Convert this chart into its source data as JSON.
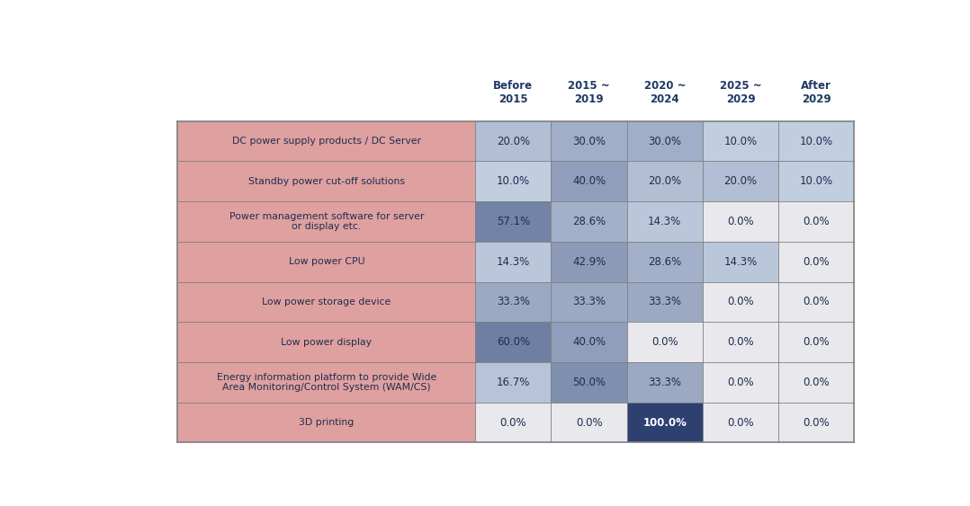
{
  "rows": [
    {
      "label": "DC power supply products / DC Server",
      "values": [
        20.0,
        30.0,
        30.0,
        10.0,
        10.0
      ]
    },
    {
      "label": "Standby power cut-off solutions",
      "values": [
        10.0,
        40.0,
        20.0,
        20.0,
        10.0
      ]
    },
    {
      "label": "Power management software for server\nor display etc.",
      "values": [
        57.1,
        28.6,
        14.3,
        0.0,
        0.0
      ]
    },
    {
      "label": "Low power CPU",
      "values": [
        14.3,
        42.9,
        28.6,
        14.3,
        0.0
      ]
    },
    {
      "label": "Low power storage device",
      "values": [
        33.3,
        33.3,
        33.3,
        0.0,
        0.0
      ]
    },
    {
      "label": "Low power display",
      "values": [
        60.0,
        40.0,
        0.0,
        0.0,
        0.0
      ]
    },
    {
      "label": "Energy information platform to provide Wide\nArea Monitoring/Control System (WAM/CS)",
      "values": [
        16.7,
        50.0,
        33.3,
        0.0,
        0.0
      ]
    },
    {
      "label": "3D printing",
      "values": [
        0.0,
        0.0,
        100.0,
        0.0,
        0.0
      ]
    }
  ],
  "col_headers": [
    "Before\n2015",
    "2015 ~\n2019",
    "2020 ~\n2024",
    "2025 ~\n2029",
    "After\n2029"
  ],
  "row_bg_color": "#dfa0a0",
  "zero_bg_color": "#e8e8ed",
  "col_header_color": "#1f3864",
  "text_color_dark": "#1f2d4e",
  "text_color_white": "#ffffff",
  "border_color": "#7f7f7f",
  "dark_blue_cell": "#2d4070",
  "blue_min": [
    210,
    220,
    235
  ],
  "blue_max": [
    70,
    100,
    155
  ]
}
